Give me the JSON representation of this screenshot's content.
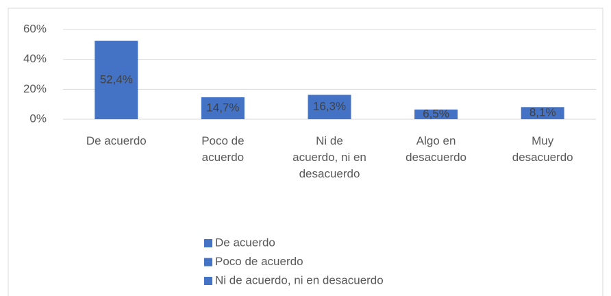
{
  "chart_data": {
    "type": "bar",
    "categories": [
      "De acuerdo",
      "Poco de acuerdo",
      "Ni de acuerdo, ni en desacuerdo",
      "Algo en desacuerdo",
      "Muy desacuerdo"
    ],
    "values": [
      52.4,
      14.7,
      16.3,
      6.5,
      8.1
    ],
    "value_labels": [
      "52,4%",
      "14,7%",
      "16,3%",
      "6,5%",
      "8,1%"
    ],
    "color": "#4472c4",
    "ylim": [
      0,
      60
    ],
    "yticks": [
      {
        "value": 0,
        "label": "0%"
      },
      {
        "value": 20,
        "label": "20%"
      },
      {
        "value": 40,
        "label": "40%"
      },
      {
        "value": 60,
        "label": "60%"
      }
    ],
    "grid": true,
    "legend": [
      "De acuerdo",
      "Poco de acuerdo",
      "Ni de acuerdo, ni en desacuerdo"
    ]
  }
}
